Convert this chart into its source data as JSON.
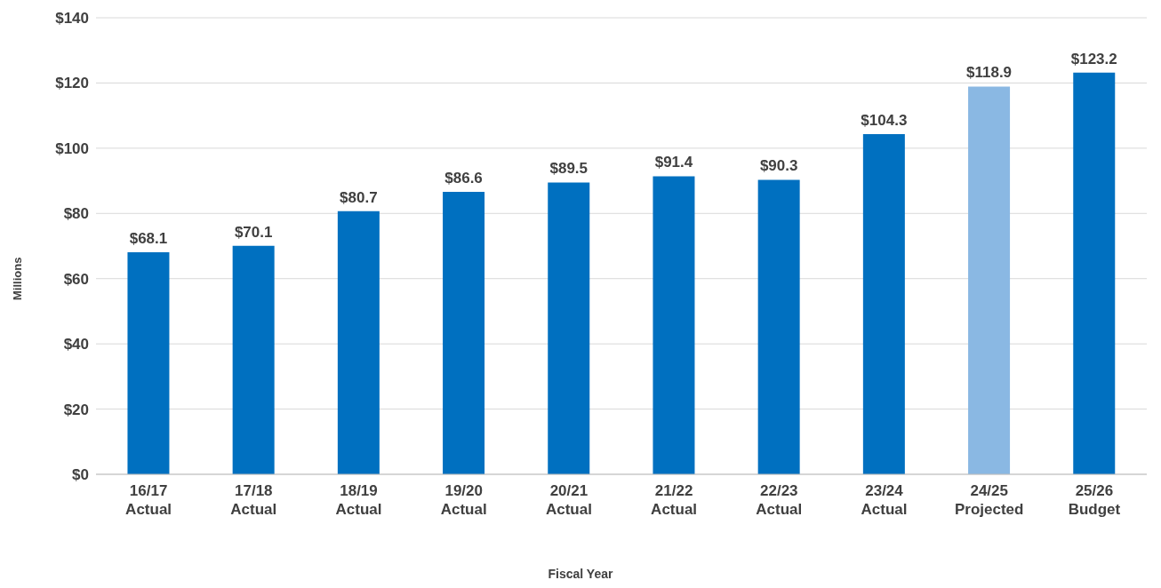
{
  "chart_data": {
    "type": "bar",
    "xlabel": "Fiscal Year",
    "ylabel": "Millions",
    "categories": [
      "16/17\nActual",
      "17/18\nActual",
      "18/19\nActual",
      "19/20\nActual",
      "20/21\nActual",
      "21/22\nActual",
      "22/23\nActual",
      "23/24\nActual",
      "24/25\nProjected",
      "25/26\nBudget"
    ],
    "values": [
      68.1,
      70.1,
      80.7,
      86.6,
      89.5,
      91.4,
      90.3,
      104.3,
      118.9,
      123.2
    ],
    "value_labels": [
      "$68.1",
      "$70.1",
      "$80.7",
      "$86.6",
      "$89.5",
      "$91.4",
      "$90.3",
      "$104.3",
      "$118.9",
      "$123.2"
    ],
    "colors": [
      "#0070c0",
      "#0070c0",
      "#0070c0",
      "#0070c0",
      "#0070c0",
      "#0070c0",
      "#0070c0",
      "#0070c0",
      "#8ab8e3",
      "#0070c0"
    ],
    "ylim": [
      0,
      140
    ],
    "yticks": [
      {
        "value": 0,
        "label": "$0"
      },
      {
        "value": 20,
        "label": "$20"
      },
      {
        "value": 40,
        "label": "$40"
      },
      {
        "value": 60,
        "label": "$60"
      },
      {
        "value": 80,
        "label": "$80"
      },
      {
        "value": 100,
        "label": "$100"
      },
      {
        "value": 120,
        "label": "$120"
      },
      {
        "value": 140,
        "label": "$140"
      }
    ],
    "grid": "y",
    "legend": false
  }
}
